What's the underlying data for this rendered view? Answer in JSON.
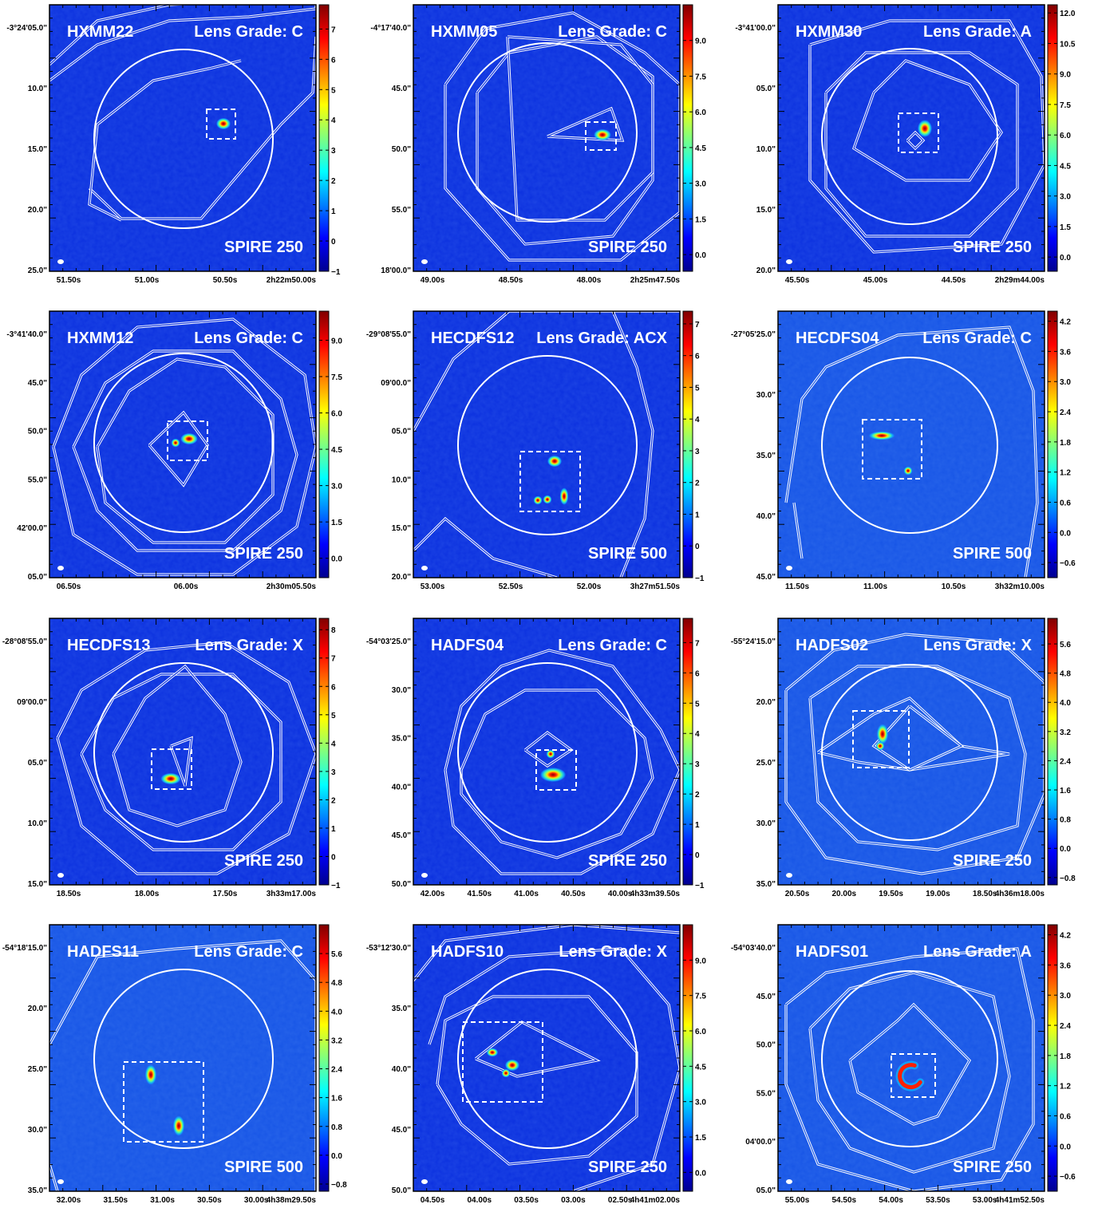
{
  "figure": {
    "panels": [
      {
        "name": "HXMM22",
        "grade": "Lens Grade: C",
        "band": "SPIRE 250",
        "yticks": [
          "-3°24'05.0\"",
          "10.0\"",
          "15.0\"",
          "20.0\"",
          "25.0\""
        ],
        "xticks": [
          "51.50s",
          "51.00s",
          "50.50s",
          "2h22m50.00s"
        ],
        "cbticks": [
          "7",
          "6",
          "5",
          "4",
          "3",
          "2",
          "1",
          "0",
          "−1"
        ],
        "cbmin": -1,
        "cbmax": 7.8,
        "bg": "#0b30df"
      },
      {
        "name": "HXMM05",
        "grade": "Lens Grade: C",
        "band": "SPIRE 250",
        "yticks": [
          "-4°17'40.0\"",
          "45.0\"",
          "50.0\"",
          "55.0\"",
          "18'00.0\""
        ],
        "xticks": [
          "49.00s",
          "48.50s",
          "48.00s",
          "2h25m47.50s"
        ],
        "cbticks": [
          "9.0",
          "7.5",
          "6.0",
          "4.5",
          "3.0",
          "1.5",
          "0.0"
        ],
        "cbmin": -0.7,
        "cbmax": 10.5,
        "bg": "#0b30df"
      },
      {
        "name": "HXMM30",
        "grade": "Lens Grade: A",
        "band": "SPIRE 250",
        "yticks": [
          "-3°41'00.0\"",
          "05.0\"",
          "10.0\"",
          "15.0\"",
          "20.0\""
        ],
        "xticks": [
          "45.50s",
          "45.00s",
          "44.50s",
          "2h29m44.00s"
        ],
        "cbticks": [
          "12.0",
          "10.5",
          "9.0",
          "7.5",
          "6.0",
          "4.5",
          "3.0",
          "1.5",
          "0.0"
        ],
        "cbmin": -0.7,
        "cbmax": 12.4,
        "bg": "#0b30df"
      },
      {
        "name": "HXMM12",
        "grade": "Lens Grade: C",
        "band": "SPIRE 250",
        "yticks": [
          "-3°41'40.0\"",
          "45.0\"",
          "50.0\"",
          "55.0\"",
          "42'00.0\"",
          "05.0\""
        ],
        "xticks": [
          "06.50s",
          "06.00s",
          "2h30m05.50s"
        ],
        "cbticks": [
          "9.0",
          "7.5",
          "6.0",
          "4.5",
          "3.0",
          "1.5",
          "0.0"
        ],
        "cbmin": -0.8,
        "cbmax": 10.2,
        "bg": "#0b30df"
      },
      {
        "name": "HECDFS12",
        "grade": "Lens Grade: ACX",
        "band": "SPIRE 500",
        "yticks": [
          "-29°08'55.0\"",
          "09'00.0\"",
          "05.0\"",
          "10.0\"",
          "15.0\"",
          "20.0\""
        ],
        "xticks": [
          "53.00s",
          "52.50s",
          "52.00s",
          "3h27m51.50s"
        ],
        "cbticks": [
          "7",
          "6",
          "5",
          "4",
          "3",
          "2",
          "1",
          "0",
          "−1"
        ],
        "cbmin": -1,
        "cbmax": 7.4,
        "bg": "#0b30df"
      },
      {
        "name": "HECDFS04",
        "grade": "Lens Grade: C",
        "band": "SPIRE 500",
        "yticks": [
          "-27°05'25.0\"",
          "30.0\"",
          "35.0\"",
          "40.0\"",
          "45.0\""
        ],
        "xticks": [
          "11.50s",
          "11.00s",
          "10.50s",
          "3h32m10.00s"
        ],
        "cbticks": [
          "4.2",
          "3.6",
          "3.0",
          "2.4",
          "1.8",
          "1.2",
          "0.6",
          "0.0",
          "−0.6"
        ],
        "cbmin": -0.9,
        "cbmax": 4.4,
        "bg": "#1755e6"
      },
      {
        "name": "HECDFS13",
        "grade": "Lens Grade: X",
        "band": "SPIRE 250",
        "yticks": [
          "-28°08'55.0\"",
          "09'00.0\"",
          "05.0\"",
          "10.0\"",
          "15.0\""
        ],
        "xticks": [
          "18.50s",
          "18.00s",
          "17.50s",
          "3h33m17.00s"
        ],
        "cbticks": [
          "8",
          "7",
          "6",
          "5",
          "4",
          "3",
          "2",
          "1",
          "0",
          "−1"
        ],
        "cbmin": -1,
        "cbmax": 8.4,
        "bg": "#0b30df"
      },
      {
        "name": "HADFS04",
        "grade": "Lens Grade: C",
        "band": "SPIRE 250",
        "yticks": [
          "-54°03'25.0\"",
          "30.0\"",
          "35.0\"",
          "40.0\"",
          "45.0\"",
          "50.0\""
        ],
        "xticks": [
          "42.00s",
          "41.50s",
          "41.00s",
          "40.50s",
          "40.00s",
          "4h33m39.50s"
        ],
        "cbticks": [
          "7",
          "6",
          "5",
          "4",
          "3",
          "2",
          "1",
          "0",
          "−1"
        ],
        "cbmin": -1,
        "cbmax": 7.8,
        "bg": "#0b30df"
      },
      {
        "name": "HADFS02",
        "grade": "Lens Grade: X",
        "band": "SPIRE 250",
        "yticks": [
          "-55°24'15.0\"",
          "20.0\"",
          "25.0\"",
          "30.0\"",
          "35.0\""
        ],
        "xticks": [
          "20.50s",
          "20.00s",
          "19.50s",
          "19.00s",
          "18.50s",
          "4h36m18.00s"
        ],
        "cbticks": [
          "5.6",
          "4.8",
          "4.0",
          "3.2",
          "2.4",
          "1.6",
          "0.8",
          "0.0",
          "−0.8"
        ],
        "cbmin": -1.0,
        "cbmax": 6.3,
        "bg": "#1755e6"
      },
      {
        "name": "HADFS11",
        "grade": "Lens Grade: C",
        "band": "SPIRE 500",
        "yticks": [
          "-54°18'15.0\"",
          "20.0\"",
          "25.0\"",
          "30.0\"",
          "35.0\""
        ],
        "xticks": [
          "32.00s",
          "31.50s",
          "31.00s",
          "30.50s",
          "30.00s",
          "4h38m29.50s"
        ],
        "cbticks": [
          "5.6",
          "4.8",
          "4.0",
          "3.2",
          "2.4",
          "1.6",
          "0.8",
          "0.0",
          "−0.8"
        ],
        "cbmin": -1.0,
        "cbmax": 6.4,
        "bg": "#1755e6"
      },
      {
        "name": "HADFS10",
        "grade": "Lens Grade: X",
        "band": "SPIRE 250",
        "yticks": [
          "-53°12'30.0\"",
          "35.0\"",
          "40.0\"",
          "45.0\"",
          "50.0\""
        ],
        "xticks": [
          "04.50s",
          "04.00s",
          "03.50s",
          "03.00s",
          "02.50s",
          "4h41m02.00s"
        ],
        "cbticks": [
          "9.0",
          "7.5",
          "6.0",
          "4.5",
          "3.0",
          "1.5",
          "0.0"
        ],
        "cbmin": -0.8,
        "cbmax": 10.5,
        "bg": "#0b30df"
      },
      {
        "name": "HADFS01",
        "grade": "Lens Grade: A",
        "band": "SPIRE 250",
        "yticks": [
          "-54°03'40.0\"",
          "45.0\"",
          "50.0\"",
          "55.0\"",
          "04'00.0\"",
          "05.0\""
        ],
        "xticks": [
          "55.00s",
          "54.50s",
          "54.00s",
          "53.50s",
          "53.00s",
          "4h41m52.50s"
        ],
        "cbticks": [
          "4.2",
          "3.6",
          "3.0",
          "2.4",
          "1.8",
          "1.2",
          "0.6",
          "0.0",
          "−0.6"
        ],
        "cbmin": -0.9,
        "cbmax": 4.4,
        "bg": "#1755e6"
      }
    ]
  },
  "colors": {
    "frame": "#000000",
    "overlay": "#ffffff",
    "text": "#ffffff"
  }
}
